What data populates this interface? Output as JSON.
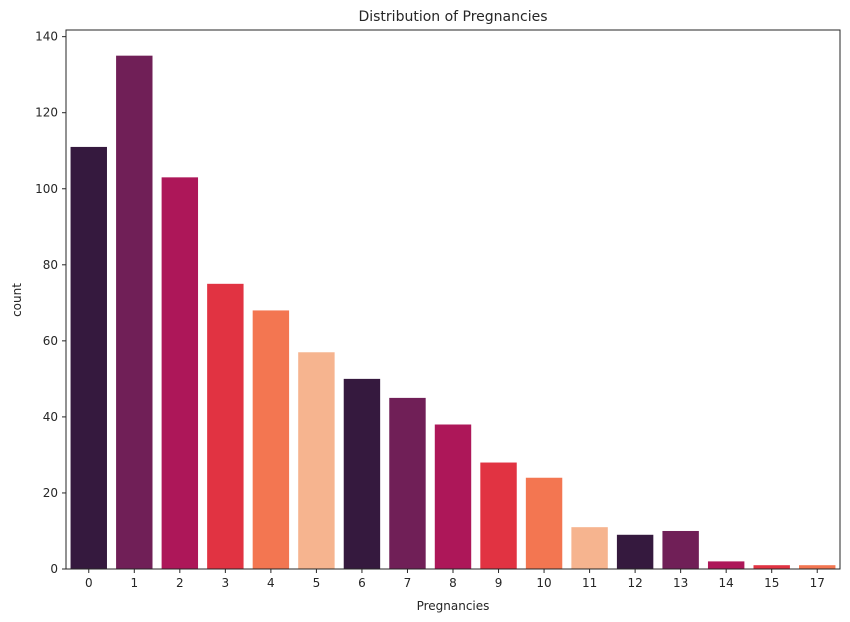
{
  "chart_data": {
    "type": "bar",
    "title": "Distribution of Pregnancies",
    "xlabel": "Pregnancies",
    "ylabel": "count",
    "categories": [
      "0",
      "1",
      "2",
      "3",
      "4",
      "5",
      "6",
      "7",
      "8",
      "9",
      "10",
      "11",
      "12",
      "13",
      "14",
      "15",
      "17"
    ],
    "values": [
      111,
      135,
      103,
      75,
      68,
      57,
      50,
      45,
      38,
      28,
      24,
      11,
      9,
      10,
      2,
      1,
      1
    ],
    "ylim": [
      0,
      141.75
    ],
    "yticks": [
      0,
      20,
      40,
      60,
      80,
      100,
      120,
      140
    ],
    "grid": false,
    "legend": "none",
    "palette": [
      "#35193e",
      "#701f57",
      "#ad1759",
      "#e13342",
      "#f37651",
      "#f6b48f"
    ]
  }
}
